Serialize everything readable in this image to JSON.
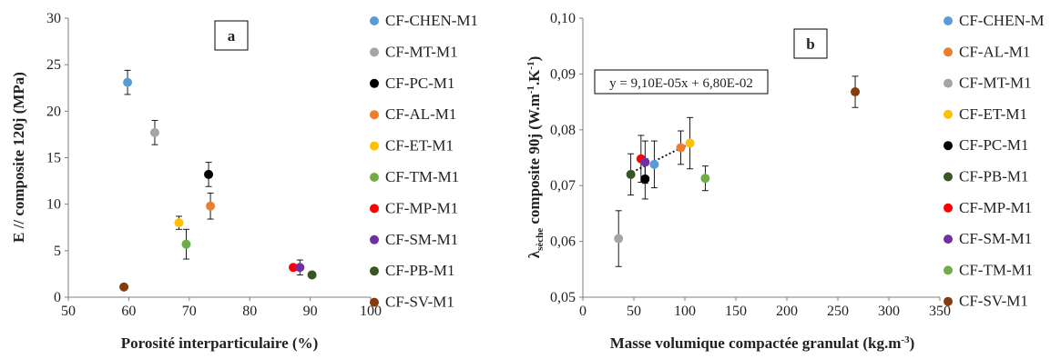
{
  "chart_data": [
    {
      "type": "scatter",
      "panel_label": "a",
      "title": "",
      "xlabel": "Porosité interparticulaire (%)",
      "ylabel": "E // composite 120j (MPa)",
      "xlim": [
        50,
        100
      ],
      "ylim": [
        0,
        30
      ],
      "x_ticks": [
        "50",
        "60",
        "70",
        "80",
        "90",
        "100"
      ],
      "y_ticks": [
        "0",
        "5",
        "10",
        "15",
        "20",
        "25",
        "30"
      ],
      "grid": false,
      "legend_position": "right",
      "series": [
        {
          "name": "CF-CHEN-M1",
          "color": "#5B9BD5",
          "x": [
            59.8
          ],
          "y": [
            23.1
          ],
          "err": [
            1.3
          ]
        },
        {
          "name": "CF-MT-M1",
          "color": "#A5A5A5",
          "x": [
            64.3
          ],
          "y": [
            17.7
          ],
          "err": [
            1.3
          ]
        },
        {
          "name": "CF-PC-M1",
          "color": "#000000",
          "x": [
            73.2
          ],
          "y": [
            13.2
          ],
          "err": [
            1.3
          ]
        },
        {
          "name": "CF-AL-M1",
          "color": "#ED7D31",
          "x": [
            73.5
          ],
          "y": [
            9.8
          ],
          "err": [
            1.4
          ]
        },
        {
          "name": "CF-ET-M1",
          "color": "#FFC000",
          "x": [
            68.3
          ],
          "y": [
            8.0
          ],
          "err": [
            0.7
          ]
        },
        {
          "name": "CF-TM-M1",
          "color": "#70AD47",
          "x": [
            69.5
          ],
          "y": [
            5.7
          ],
          "err": [
            1.6
          ]
        },
        {
          "name": "CF-MP-M1",
          "color": "#FF0000",
          "x": [
            87.2
          ],
          "y": [
            3.2
          ],
          "err": [
            0.3
          ]
        },
        {
          "name": "CF-SM-M1",
          "color": "#7030A0",
          "x": [
            88.3
          ],
          "y": [
            3.2
          ],
          "err": [
            0.8
          ]
        },
        {
          "name": "CF-PB-M1",
          "color": "#375623",
          "x": [
            90.3
          ],
          "y": [
            2.4
          ],
          "err": [
            0.3
          ]
        },
        {
          "name": "CF-SV-M1",
          "color": "#843C0C",
          "x": [
            59.2
          ],
          "y": [
            1.1
          ],
          "err": [
            0.2
          ]
        }
      ]
    },
    {
      "type": "scatter",
      "panel_label": "b",
      "title": "",
      "xlabel": "Masse volumique compactée granulat (kg.m⁻³)",
      "ylabel": "λsèche composite 90j (W.m⁻¹.K⁻¹)",
      "ylabel_parts": {
        "lambda": "λ",
        "sub": "sèche",
        "main": " composite 90j (W.m",
        "exp1": "-1",
        "mid": ".K",
        "exp2": "-1",
        "end": ")"
      },
      "xlabel_parts": {
        "main": "Masse volumique compactée granulat (kg.m",
        "exp": "-3",
        "end": ")"
      },
      "xlim": [
        0,
        350
      ],
      "ylim": [
        0.05,
        0.1
      ],
      "x_ticks": [
        "0",
        "50",
        "100",
        "150",
        "200",
        "250",
        "300",
        "350"
      ],
      "y_ticks": [
        "0,05",
        "0,06",
        "0,07",
        "0,08",
        "0,09",
        "0,10"
      ],
      "grid": false,
      "legend_position": "right",
      "trendline_equation": "y = 9,10E-05x + 6,80E-02",
      "trendline": {
        "slope": 9.1e-05,
        "intercept": 0.068,
        "x_range": [
          45,
          105
        ]
      },
      "series": [
        {
          "name": "CF-CHEN-M",
          "color": "#5B9BD5",
          "x": [
            70
          ],
          "y": [
            0.0738
          ],
          "err": [
            0.0042
          ]
        },
        {
          "name": "CF-AL-M1",
          "color": "#ED7D31",
          "x": [
            96
          ],
          "y": [
            0.0768
          ],
          "err": [
            0.003
          ]
        },
        {
          "name": "CF-MT-M1",
          "color": "#A5A5A5",
          "x": [
            35
          ],
          "y": [
            0.0605
          ],
          "err": [
            0.005
          ]
        },
        {
          "name": "CF-ET-M1",
          "color": "#FFC000",
          "x": [
            105
          ],
          "y": [
            0.0776
          ],
          "err": [
            0.0046
          ]
        },
        {
          "name": "CF-PC-M1",
          "color": "#000000",
          "x": [
            61
          ],
          "y": [
            0.0712
          ],
          "err": [
            0.0036
          ]
        },
        {
          "name": "CF-PB-M1",
          "color": "#375623",
          "x": [
            47
          ],
          "y": [
            0.072
          ],
          "err": [
            0.0037
          ]
        },
        {
          "name": "CF-MP-M1",
          "color": "#FF0000",
          "x": [
            57
          ],
          "y": [
            0.0748
          ],
          "err": [
            0.0042
          ]
        },
        {
          "name": "CF-SM-M1",
          "color": "#7030A0",
          "x": [
            61
          ],
          "y": [
            0.0742
          ],
          "err": [
            0.0038
          ]
        },
        {
          "name": "CF-TM-M1",
          "color": "#70AD47",
          "x": [
            120
          ],
          "y": [
            0.0713
          ],
          "err": [
            0.0022
          ]
        },
        {
          "name": "CF-SV-M1",
          "color": "#843C0C",
          "x": [
            267
          ],
          "y": [
            0.0868
          ],
          "err": [
            0.0028
          ]
        }
      ]
    }
  ]
}
